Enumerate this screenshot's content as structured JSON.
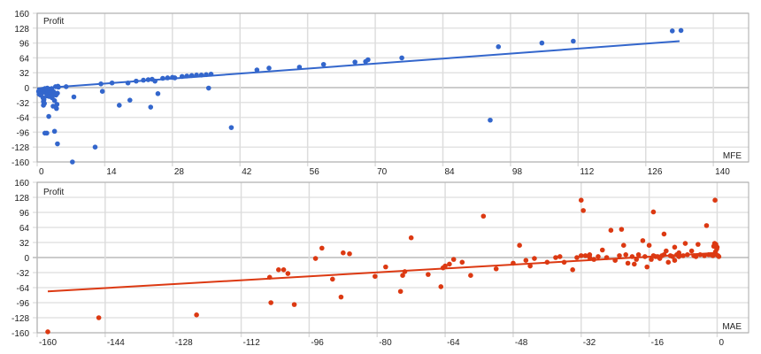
{
  "chart_data": [
    {
      "type": "scatter",
      "title": "",
      "xlabel": "MFE",
      "ylabel": "Profit",
      "xlim": [
        0,
        147.3
      ],
      "ylim": [
        -160,
        160
      ],
      "x_ticks": [
        0,
        14,
        28,
        42,
        56,
        70,
        84,
        98,
        112,
        126,
        140
      ],
      "y_ticks": [
        160,
        128,
        96,
        64,
        32,
        0,
        -32,
        -64,
        -96,
        -128,
        -160
      ],
      "grid": true,
      "color": "#3366cc",
      "trendline": {
        "x0": 0,
        "y0": -2,
        "x1": 133,
        "y1": 100
      },
      "points": [
        [
          0.3,
          -8
        ],
        [
          0.4,
          -14
        ],
        [
          0.5,
          -11
        ],
        [
          0.6,
          -5
        ],
        [
          0.7,
          -16
        ],
        [
          0.8,
          -10
        ],
        [
          0.9,
          -6
        ],
        [
          1.0,
          -12
        ],
        [
          1.1,
          -4
        ],
        [
          1.2,
          -22
        ],
        [
          1.3,
          -30
        ],
        [
          1.3,
          -38
        ],
        [
          1.4,
          -26
        ],
        [
          1.5,
          -34
        ],
        [
          1.6,
          -2
        ],
        [
          1.7,
          -9
        ],
        [
          1.8,
          -3
        ],
        [
          1.9,
          -12
        ],
        [
          2.0,
          -18
        ],
        [
          2.1,
          -1
        ],
        [
          2.2,
          -7
        ],
        [
          2.3,
          -15
        ],
        [
          2.4,
          -62
        ],
        [
          2.5,
          -19
        ],
        [
          2.6,
          -4
        ],
        [
          2.8,
          -10
        ],
        [
          3.0,
          -2
        ],
        [
          3.1,
          -22
        ],
        [
          3.2,
          -17
        ],
        [
          3.3,
          -40
        ],
        [
          3.4,
          -9
        ],
        [
          3.5,
          -14
        ],
        [
          3.6,
          -28
        ],
        [
          3.8,
          2
        ],
        [
          3.9,
          -16
        ],
        [
          4.0,
          -45
        ],
        [
          4.1,
          -36
        ],
        [
          4.2,
          -12
        ],
        [
          4.3,
          3
        ],
        [
          4.4,
          1
        ],
        [
          2.0,
          -98
        ],
        [
          3.6,
          -94
        ],
        [
          4.2,
          -121
        ],
        [
          1.6,
          -98
        ],
        [
          6.0,
          2
        ],
        [
          7.6,
          -20
        ],
        [
          7.3,
          -160
        ],
        [
          12.0,
          -128
        ],
        [
          13.2,
          8
        ],
        [
          13.5,
          -8
        ],
        [
          15.5,
          10
        ],
        [
          17.0,
          -38
        ],
        [
          18.8,
          10
        ],
        [
          19.2,
          -27
        ],
        [
          20.5,
          14
        ],
        [
          22.0,
          16
        ],
        [
          23.0,
          17
        ],
        [
          23.5,
          -42
        ],
        [
          23.8,
          18
        ],
        [
          24.4,
          14
        ],
        [
          25.0,
          -13
        ],
        [
          26.0,
          20
        ],
        [
          27.0,
          21
        ],
        [
          28.0,
          22
        ],
        [
          28.5,
          21
        ],
        [
          30.0,
          24
        ],
        [
          31.0,
          25
        ],
        [
          32.0,
          26
        ],
        [
          33.0,
          27
        ],
        [
          34.0,
          27
        ],
        [
          35.0,
          28
        ],
        [
          35.5,
          -1
        ],
        [
          36.0,
          29
        ],
        [
          40.2,
          -86
        ],
        [
          45.5,
          38
        ],
        [
          48.0,
          42
        ],
        [
          54.3,
          44
        ],
        [
          59.3,
          50
        ],
        [
          65.8,
          55
        ],
        [
          68.0,
          56
        ],
        [
          68.5,
          60
        ],
        [
          75.5,
          64
        ],
        [
          93.8,
          -70
        ],
        [
          95.5,
          88
        ],
        [
          104.5,
          96
        ],
        [
          111.0,
          100
        ],
        [
          131.5,
          122
        ],
        [
          133.3,
          123
        ]
      ]
    },
    {
      "type": "scatter",
      "title": "",
      "xlabel": "MAE",
      "ylabel": "Profit",
      "xlim": [
        -160,
        7.4
      ],
      "ylim": [
        -160,
        160
      ],
      "x_ticks": [
        -160,
        -144,
        -128,
        -112,
        -96,
        -80,
        -64,
        -48,
        -32,
        -16,
        0
      ],
      "y_ticks": [
        160,
        128,
        96,
        64,
        32,
        0,
        -32,
        -64,
        -96,
        -128,
        -160
      ],
      "grid": true,
      "color": "#dc3912",
      "trendline": {
        "x0": -157.5,
        "y0": -72,
        "x1": 0,
        "y1": 10
      },
      "points": [
        [
          -157.5,
          -158
        ],
        [
          -145.5,
          -128
        ],
        [
          -122.5,
          -122
        ],
        [
          -105.0,
          -96
        ],
        [
          -105.3,
          -42
        ],
        [
          -103.2,
          -26
        ],
        [
          -102.0,
          -26
        ],
        [
          -101.0,
          -34
        ],
        [
          -99.5,
          -100
        ],
        [
          -94.5,
          -2
        ],
        [
          -93.0,
          20
        ],
        [
          -90.5,
          -46
        ],
        [
          -88.5,
          -84
        ],
        [
          -88.0,
          10
        ],
        [
          -86.5,
          8
        ],
        [
          -80.5,
          -40
        ],
        [
          -78.0,
          -20
        ],
        [
          -74.5,
          -72
        ],
        [
          -74.0,
          -38
        ],
        [
          -73.5,
          -30
        ],
        [
          -72.0,
          42
        ],
        [
          -68.0,
          -36
        ],
        [
          -65.0,
          -62
        ],
        [
          -64.5,
          -22
        ],
        [
          -64.0,
          -18
        ],
        [
          -63.0,
          -14
        ],
        [
          -62.0,
          -4
        ],
        [
          -60.0,
          -10
        ],
        [
          -58.0,
          -38
        ],
        [
          -55.0,
          88
        ],
        [
          -52.0,
          -24
        ],
        [
          -48.0,
          -12
        ],
        [
          -46.5,
          26
        ],
        [
          -45.0,
          -6
        ],
        [
          -44.0,
          -18
        ],
        [
          -43.0,
          -2
        ],
        [
          -40.0,
          -10
        ],
        [
          -38.0,
          0
        ],
        [
          -37.0,
          2
        ],
        [
          -36.0,
          -10
        ],
        [
          -34.0,
          -26
        ],
        [
          -33.0,
          0
        ],
        [
          -32.0,
          4
        ],
        [
          -31.0,
          4
        ],
        [
          -30.0,
          0
        ],
        [
          -32.0,
          122
        ],
        [
          -31.5,
          100
        ],
        [
          -30.0,
          6
        ],
        [
          -29.0,
          -4
        ],
        [
          -28.0,
          2
        ],
        [
          -27.0,
          16
        ],
        [
          -26.0,
          0
        ],
        [
          -25.0,
          58
        ],
        [
          -24.0,
          -6
        ],
        [
          -23.0,
          4
        ],
        [
          -22.5,
          60
        ],
        [
          -22.0,
          26
        ],
        [
          -21.5,
          6
        ],
        [
          -21.0,
          -12
        ],
        [
          -20.0,
          2
        ],
        [
          -19.5,
          -14
        ],
        [
          -19.0,
          -4
        ],
        [
          -18.5,
          6
        ],
        [
          -17.5,
          36
        ],
        [
          -17.0,
          2
        ],
        [
          -16.5,
          -20
        ],
        [
          -16.0,
          26
        ],
        [
          -15.5,
          -4
        ],
        [
          -15.0,
          4
        ],
        [
          -14.5,
          2
        ],
        [
          -14.0,
          2
        ],
        [
          -13.5,
          -2
        ],
        [
          -13.0,
          4
        ],
        [
          -12.5,
          6
        ],
        [
          -12.0,
          14
        ],
        [
          -11.5,
          -10
        ],
        [
          -11.0,
          4
        ],
        [
          -10.5,
          2
        ],
        [
          -10.0,
          -6
        ],
        [
          -9.5,
          6
        ],
        [
          -9.0,
          2
        ],
        [
          -15.0,
          97
        ],
        [
          -12.5,
          50
        ],
        [
          -10.0,
          22
        ],
        [
          -9.0,
          10
        ],
        [
          -8.0,
          4
        ],
        [
          -7.5,
          30
        ],
        [
          -7.0,
          6
        ],
        [
          -6.0,
          14
        ],
        [
          -5.5,
          4
        ],
        [
          -5.0,
          2
        ],
        [
          -4.5,
          28
        ],
        [
          -4.0,
          6
        ],
        [
          -3.0,
          4
        ],
        [
          -2.5,
          68
        ],
        [
          -2.0,
          6
        ],
        [
          -1.5,
          6
        ],
        [
          -1.0,
          4
        ],
        [
          -0.8,
          24
        ],
        [
          -0.6,
          30
        ],
        [
          -0.5,
          122
        ],
        [
          -0.4,
          12
        ],
        [
          -0.3,
          28
        ],
        [
          -0.2,
          6
        ],
        [
          -0.1,
          18
        ],
        [
          0.0,
          22
        ],
        [
          0.2,
          4
        ],
        [
          0.4,
          2
        ]
      ]
    }
  ],
  "charts": [
    {
      "ylabel": "Profit",
      "xlabel": "MFE"
    },
    {
      "ylabel": "Profit",
      "xlabel": "MAE"
    }
  ]
}
